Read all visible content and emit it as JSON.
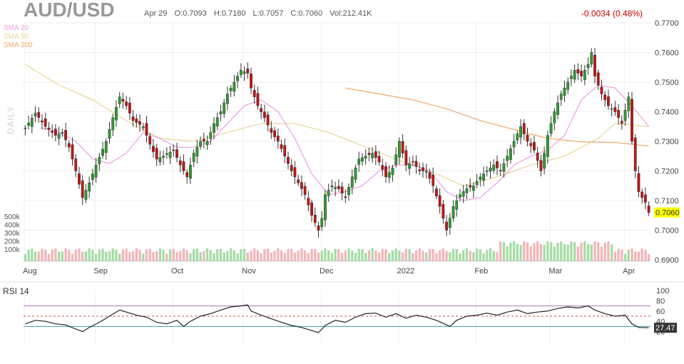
{
  "header": {
    "symbol": "AUD/USD",
    "date": "Apr 29",
    "open": "O:0.7093",
    "high": "H:0.7180",
    "low": "L:0.7057",
    "close": "C:0.7060",
    "volume": "Vol:212.41K",
    "change": "-0.0034 (0.48%)",
    "period_label": "DAILY"
  },
  "legend": [
    {
      "name": "SMA 20",
      "color": "#e9a0e0"
    },
    {
      "name": "SMA 50",
      "color": "#e8d59a"
    },
    {
      "name": "SMA 200",
      "color": "#f0a868"
    }
  ],
  "rsi": {
    "label": "RSI 14",
    "current": "27.47",
    "ticks": [
      "100",
      "80",
      "60",
      "40",
      "20"
    ]
  },
  "chart_data": {
    "type": "candlestick",
    "price_axis": {
      "range": [
        0.69,
        0.77
      ],
      "ticks": [
        "0.7700",
        "0.7600",
        "0.7500",
        "0.7400",
        "0.7300",
        "0.7200",
        "0.7100",
        "0.7000",
        "0.6900"
      ]
    },
    "volume_axis": {
      "ticks": [
        "500k",
        "400k",
        "300k",
        "200k",
        "100k"
      ]
    },
    "x_labels": [
      "Aug",
      "Sep",
      "Oct",
      "Nov",
      "Dec",
      "2022",
      "Feb",
      "Mar",
      "Apr"
    ],
    "last_price": "0.7060",
    "close_path": [
      [
        0,
        0.7345
      ],
      [
        3,
        0.7395
      ],
      [
        6,
        0.735
      ],
      [
        9,
        0.732
      ],
      [
        11,
        0.733
      ],
      [
        13,
        0.728
      ],
      [
        15,
        0.72
      ],
      [
        17,
        0.711
      ],
      [
        19,
        0.716
      ],
      [
        21,
        0.722
      ],
      [
        24,
        0.73
      ],
      [
        26,
        0.738
      ],
      [
        28,
        0.745
      ],
      [
        30,
        0.742
      ],
      [
        32,
        0.737
      ],
      [
        35,
        0.735
      ],
      [
        37,
        0.729
      ],
      [
        39,
        0.724
      ],
      [
        41,
        0.725
      ],
      [
        44,
        0.727
      ],
      [
        46,
        0.722
      ],
      [
        48,
        0.718
      ],
      [
        50,
        0.726
      ],
      [
        52,
        0.73
      ],
      [
        54,
        0.73
      ],
      [
        56,
        0.736
      ],
      [
        58,
        0.74
      ],
      [
        60,
        0.746
      ],
      [
        62,
        0.75
      ],
      [
        64,
        0.754
      ],
      [
        66,
        0.753
      ],
      [
        67,
        0.748
      ],
      [
        69,
        0.742
      ],
      [
        71,
        0.738
      ],
      [
        73,
        0.733
      ],
      [
        75,
        0.73
      ],
      [
        77,
        0.725
      ],
      [
        79,
        0.72
      ],
      [
        81,
        0.716
      ],
      [
        83,
        0.712
      ],
      [
        85,
        0.705
      ],
      [
        87,
        0.7
      ],
      [
        88,
        0.704
      ],
      [
        89,
        0.712
      ],
      [
        91,
        0.715
      ],
      [
        93,
        0.714
      ],
      [
        95,
        0.711
      ],
      [
        97,
        0.718
      ],
      [
        99,
        0.724
      ],
      [
        101,
        0.725
      ],
      [
        103,
        0.726
      ],
      [
        105,
        0.723
      ],
      [
        107,
        0.718
      ],
      [
        109,
        0.721
      ],
      [
        111,
        0.73
      ],
      [
        113,
        0.722
      ],
      [
        115,
        0.723
      ],
      [
        117,
        0.72
      ],
      [
        119,
        0.72
      ],
      [
        121,
        0.715
      ],
      [
        123,
        0.708
      ],
      [
        125,
        0.7
      ],
      [
        126,
        0.704
      ],
      [
        127,
        0.708
      ],
      [
        129,
        0.712
      ],
      [
        131,
        0.714
      ],
      [
        133,
        0.715
      ],
      [
        135,
        0.718
      ],
      [
        137,
        0.72
      ],
      [
        139,
        0.722
      ],
      [
        141,
        0.72
      ],
      [
        143,
        0.725
      ],
      [
        145,
        0.73
      ],
      [
        147,
        0.735
      ],
      [
        149,
        0.73
      ],
      [
        151,
        0.727
      ],
      [
        153,
        0.72
      ],
      [
        155,
        0.732
      ],
      [
        157,
        0.74
      ],
      [
        159,
        0.746
      ],
      [
        161,
        0.75
      ],
      [
        163,
        0.754
      ],
      [
        165,
        0.752
      ],
      [
        167,
        0.756
      ],
      [
        168,
        0.76
      ],
      [
        169,
        0.752
      ],
      [
        171,
        0.746
      ],
      [
        173,
        0.742
      ],
      [
        175,
        0.74
      ],
      [
        177,
        0.736
      ],
      [
        179,
        0.745
      ],
      [
        180,
        0.73
      ],
      [
        181,
        0.72
      ],
      [
        182,
        0.713
      ],
      [
        183,
        0.711
      ],
      [
        184,
        0.7094
      ],
      [
        185,
        0.706
      ]
    ],
    "sma20_path": [
      [
        5,
        0.7345
      ],
      [
        10,
        0.733
      ],
      [
        15,
        0.73
      ],
      [
        20,
        0.724
      ],
      [
        25,
        0.7225
      ],
      [
        30,
        0.726
      ],
      [
        35,
        0.733
      ],
      [
        40,
        0.731
      ],
      [
        45,
        0.728
      ],
      [
        50,
        0.728
      ],
      [
        55,
        0.73
      ],
      [
        60,
        0.736
      ],
      [
        65,
        0.742
      ],
      [
        70,
        0.744
      ],
      [
        75,
        0.74
      ],
      [
        80,
        0.731
      ],
      [
        85,
        0.719
      ],
      [
        90,
        0.712
      ],
      [
        95,
        0.713
      ],
      [
        100,
        0.715
      ],
      [
        105,
        0.72
      ],
      [
        110,
        0.722
      ],
      [
        115,
        0.722
      ],
      [
        120,
        0.72
      ],
      [
        125,
        0.713
      ],
      [
        130,
        0.71
      ],
      [
        135,
        0.711
      ],
      [
        140,
        0.716
      ],
      [
        145,
        0.722
      ],
      [
        150,
        0.725
      ],
      [
        155,
        0.727
      ],
      [
        160,
        0.732
      ],
      [
        165,
        0.744
      ],
      [
        170,
        0.749
      ],
      [
        175,
        0.748
      ],
      [
        180,
        0.742
      ],
      [
        185,
        0.735
      ]
    ],
    "sma50_path": [
      [
        0,
        0.756
      ],
      [
        10,
        0.749
      ],
      [
        20,
        0.744
      ],
      [
        30,
        0.737
      ],
      [
        40,
        0.731
      ],
      [
        50,
        0.73
      ],
      [
        60,
        0.733
      ],
      [
        70,
        0.736
      ],
      [
        80,
        0.736
      ],
      [
        90,
        0.733
      ],
      [
        100,
        0.7285
      ],
      [
        110,
        0.724
      ],
      [
        120,
        0.72
      ],
      [
        130,
        0.715
      ],
      [
        140,
        0.718
      ],
      [
        150,
        0.722
      ],
      [
        160,
        0.725
      ],
      [
        170,
        0.731
      ],
      [
        175,
        0.736
      ],
      [
        185,
        0.735
      ]
    ],
    "sma200_path": [
      [
        95,
        0.748
      ],
      [
        105,
        0.746
      ],
      [
        115,
        0.744
      ],
      [
        125,
        0.741
      ],
      [
        135,
        0.737
      ],
      [
        145,
        0.734
      ],
      [
        155,
        0.731
      ],
      [
        165,
        0.7298
      ],
      [
        175,
        0.7296
      ],
      [
        185,
        0.7284
      ]
    ],
    "rsi_path": [
      [
        0,
        35
      ],
      [
        3,
        42
      ],
      [
        6,
        40
      ],
      [
        9,
        35
      ],
      [
        12,
        33
      ],
      [
        15,
        25
      ],
      [
        17,
        20
      ],
      [
        19,
        28
      ],
      [
        22,
        38
      ],
      [
        25,
        50
      ],
      [
        28,
        62
      ],
      [
        30,
        58
      ],
      [
        33,
        52
      ],
      [
        36,
        48
      ],
      [
        39,
        38
      ],
      [
        42,
        35
      ],
      [
        45,
        42
      ],
      [
        47,
        30
      ],
      [
        49,
        40
      ],
      [
        52,
        50
      ],
      [
        55,
        55
      ],
      [
        58,
        62
      ],
      [
        61,
        68
      ],
      [
        64,
        70
      ],
      [
        66,
        72
      ],
      [
        67,
        60
      ],
      [
        70,
        52
      ],
      [
        73,
        45
      ],
      [
        76,
        38
      ],
      [
        79,
        32
      ],
      [
        82,
        28
      ],
      [
        85,
        22
      ],
      [
        87,
        18
      ],
      [
        89,
        32
      ],
      [
        92,
        42
      ],
      [
        95,
        38
      ],
      [
        98,
        48
      ],
      [
        101,
        55
      ],
      [
        104,
        56
      ],
      [
        107,
        48
      ],
      [
        110,
        55
      ],
      [
        113,
        46
      ],
      [
        116,
        52
      ],
      [
        119,
        48
      ],
      [
        122,
        42
      ],
      [
        124,
        36
      ],
      [
        126,
        30
      ],
      [
        128,
        42
      ],
      [
        131,
        50
      ],
      [
        134,
        52
      ],
      [
        137,
        56
      ],
      [
        140,
        52
      ],
      [
        143,
        58
      ],
      [
        146,
        62
      ],
      [
        149,
        55
      ],
      [
        152,
        58
      ],
      [
        155,
        60
      ],
      [
        158,
        65
      ],
      [
        161,
        68
      ],
      [
        164,
        66
      ],
      [
        167,
        70
      ],
      [
        169,
        62
      ],
      [
        172,
        55
      ],
      [
        175,
        50
      ],
      [
        178,
        52
      ],
      [
        180,
        35
      ],
      [
        182,
        28
      ],
      [
        185,
        27.47
      ]
    ]
  }
}
